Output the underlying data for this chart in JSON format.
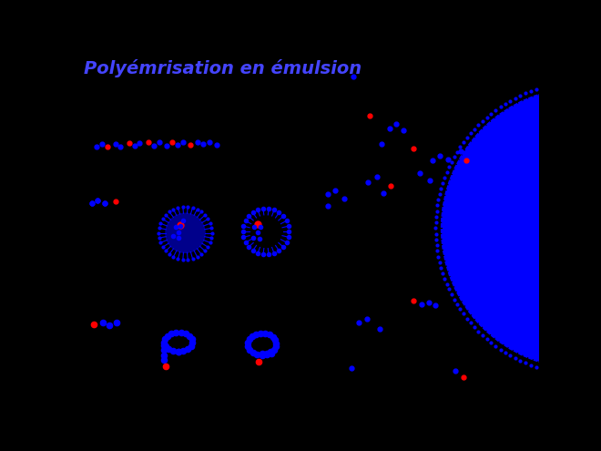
{
  "title": "Polyémrisation en émulsion",
  "title_color": "#4444ff",
  "title_fontsize": 14,
  "bg_color": "black",
  "blue": "#0000ff",
  "red": "#ff0000",
  "dark_blue": "#00008B"
}
